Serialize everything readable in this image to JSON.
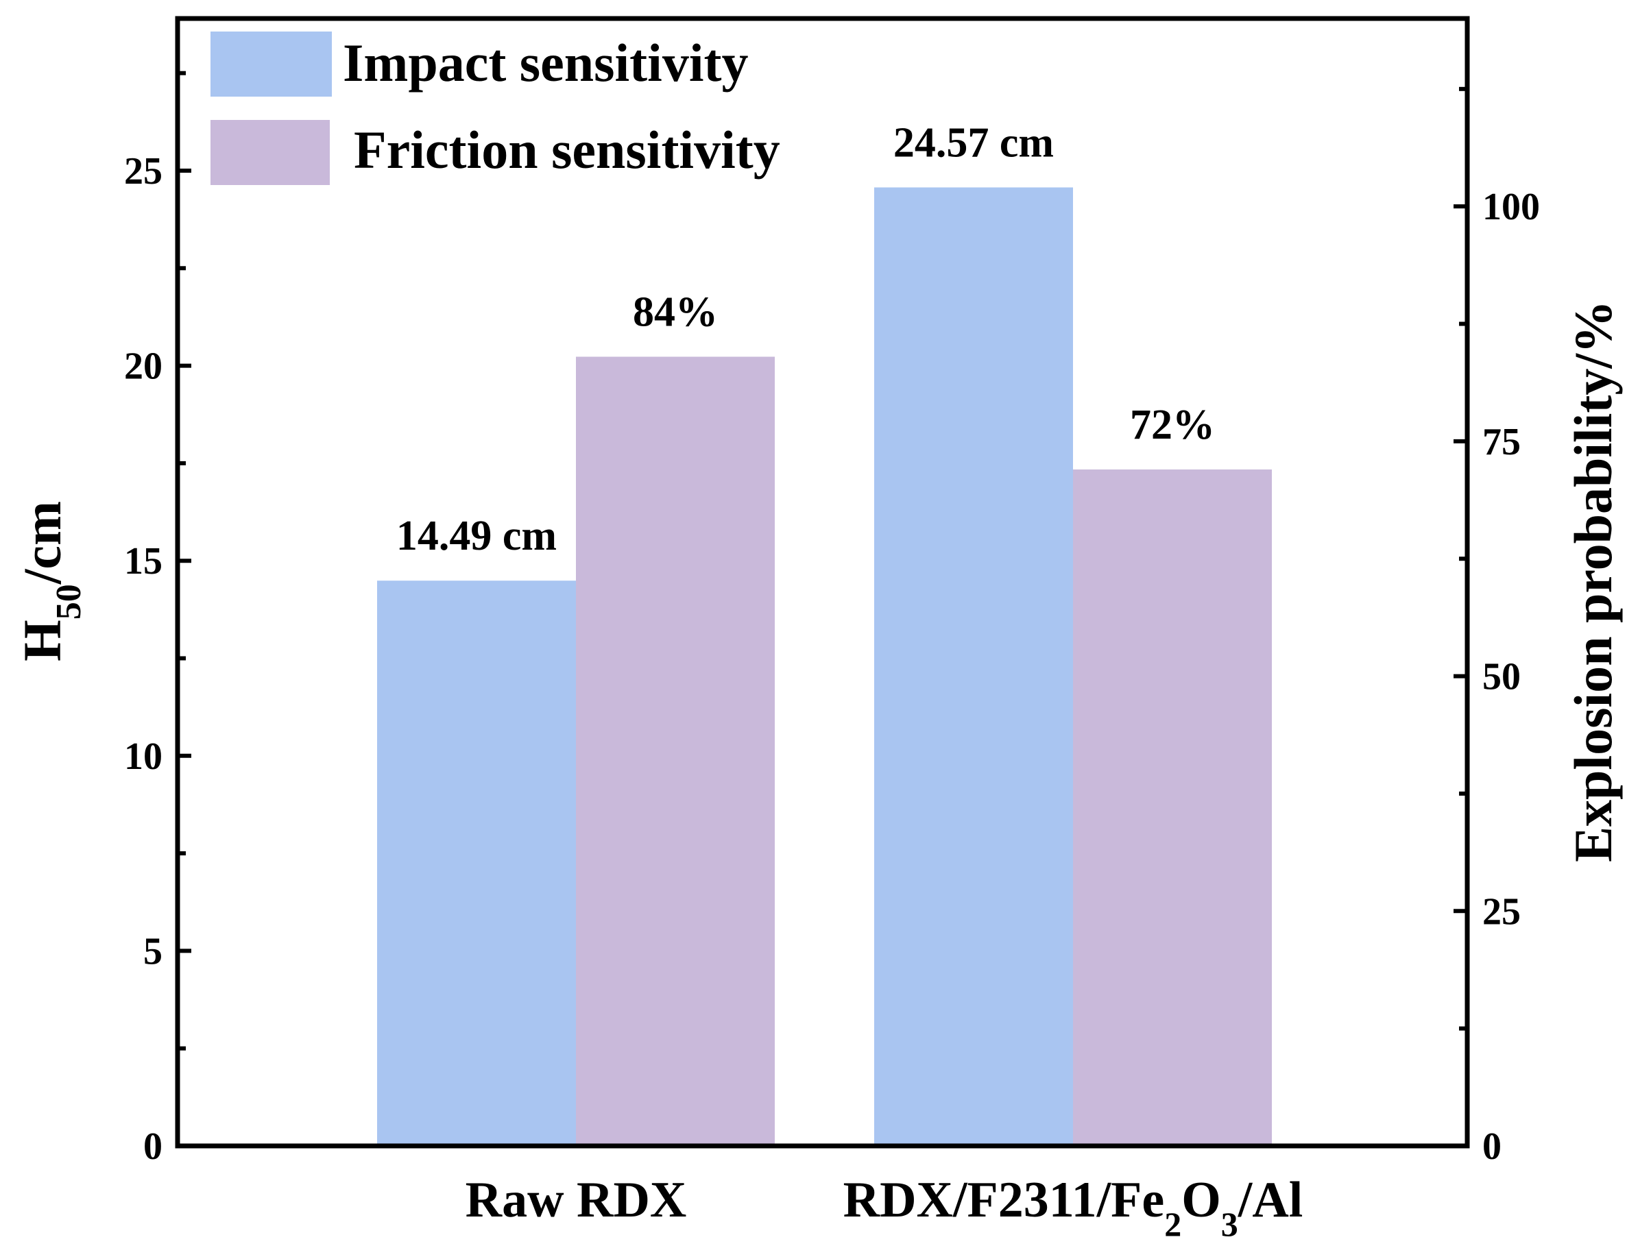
{
  "chart_data": {
    "type": "bar",
    "categories": [
      "Raw RDX",
      "RDX/F2311/Fe2O3/Al"
    ],
    "category_display": [
      {
        "parts": [
          {
            "t": "Raw RDX",
            "sub": false
          }
        ]
      },
      {
        "parts": [
          {
            "t": "RDX/F2311/Fe",
            "sub": false
          },
          {
            "t": "2",
            "sub": true
          },
          {
            "t": "O",
            "sub": false
          },
          {
            "t": "3",
            "sub": true
          },
          {
            "t": "/Al",
            "sub": false
          }
        ]
      }
    ],
    "series": [
      {
        "name": "Impact sensitivity",
        "axis": "left",
        "color": "#a9c5f1",
        "values": [
          14.49,
          24.57
        ],
        "labels": [
          "14.49 cm",
          "24.57 cm"
        ]
      },
      {
        "name": "Friction sensitivity",
        "axis": "right",
        "color": "#c9b9da",
        "values": [
          84,
          72
        ],
        "labels": [
          "84%",
          "72%"
        ]
      }
    ],
    "y_left": {
      "label_main": "H",
      "label_sub": "50",
      "label_rest": "/cm",
      "ylim": [
        0,
        28.9
      ],
      "ticks": [
        0,
        5,
        10,
        15,
        20,
        25
      ],
      "minor_ticks": [
        2.5,
        7.5,
        12.5,
        17.5,
        22.5,
        27.5
      ]
    },
    "y_right": {
      "label": "Explosion probability/%",
      "ylim": [
        0,
        120
      ],
      "ticks": [
        0,
        25,
        50,
        75,
        100
      ],
      "minor_ticks": [
        12.5,
        37.5,
        62.5,
        87.5,
        112.5
      ]
    },
    "legend": "top-left",
    "grid": false
  }
}
